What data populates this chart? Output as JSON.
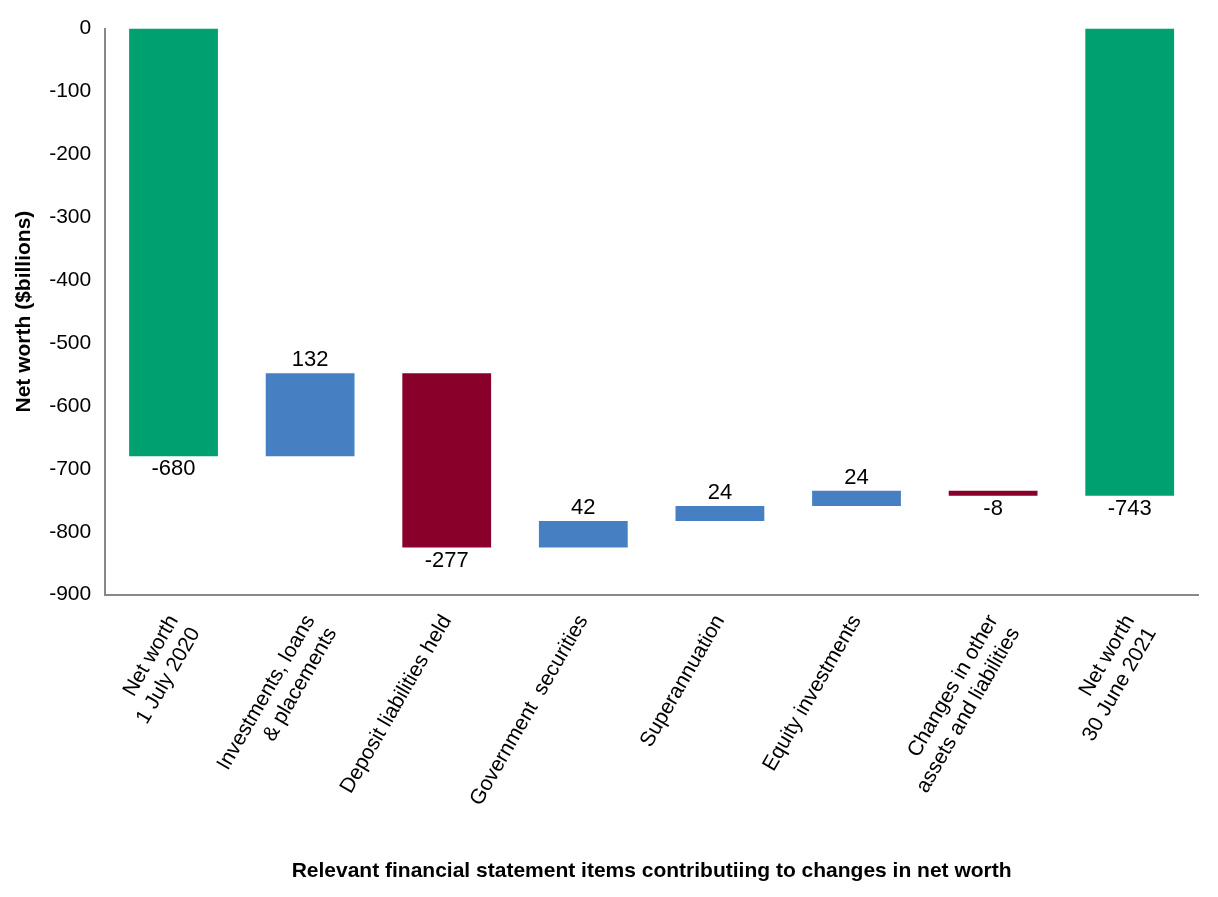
{
  "chart_data": {
    "type": "bar",
    "xlabel": "Relevant financial statement items contributiing to changes in net worth",
    "ylabel": "Net worth ($billions)",
    "categories": [
      "Net worth\n1 July 2020",
      "Investments, loans\n& placements",
      "Deposit liabilities held",
      "Government  securities",
      "Superannuation",
      "Equity investments",
      "Changes in other\nassets and liabilities",
      "Net worth\n30 June 2021"
    ],
    "values": [
      -680,
      132,
      -277,
      42,
      24,
      24,
      -8,
      -743
    ],
    "base": [
      0,
      -680,
      -548,
      -825,
      -783,
      -759,
      -735,
      0
    ],
    "colors": [
      "#00a070",
      "#467fc2",
      "#89002b",
      "#467fc2",
      "#467fc2",
      "#467fc2",
      "#89002b",
      "#00a070"
    ],
    "ylim": [
      -900,
      0
    ],
    "yticks": [
      -900,
      -800,
      -700,
      -600,
      -500,
      -400,
      -300,
      -200,
      -100,
      0
    ],
    "grid": false,
    "legend": false,
    "data_labels": true
  }
}
